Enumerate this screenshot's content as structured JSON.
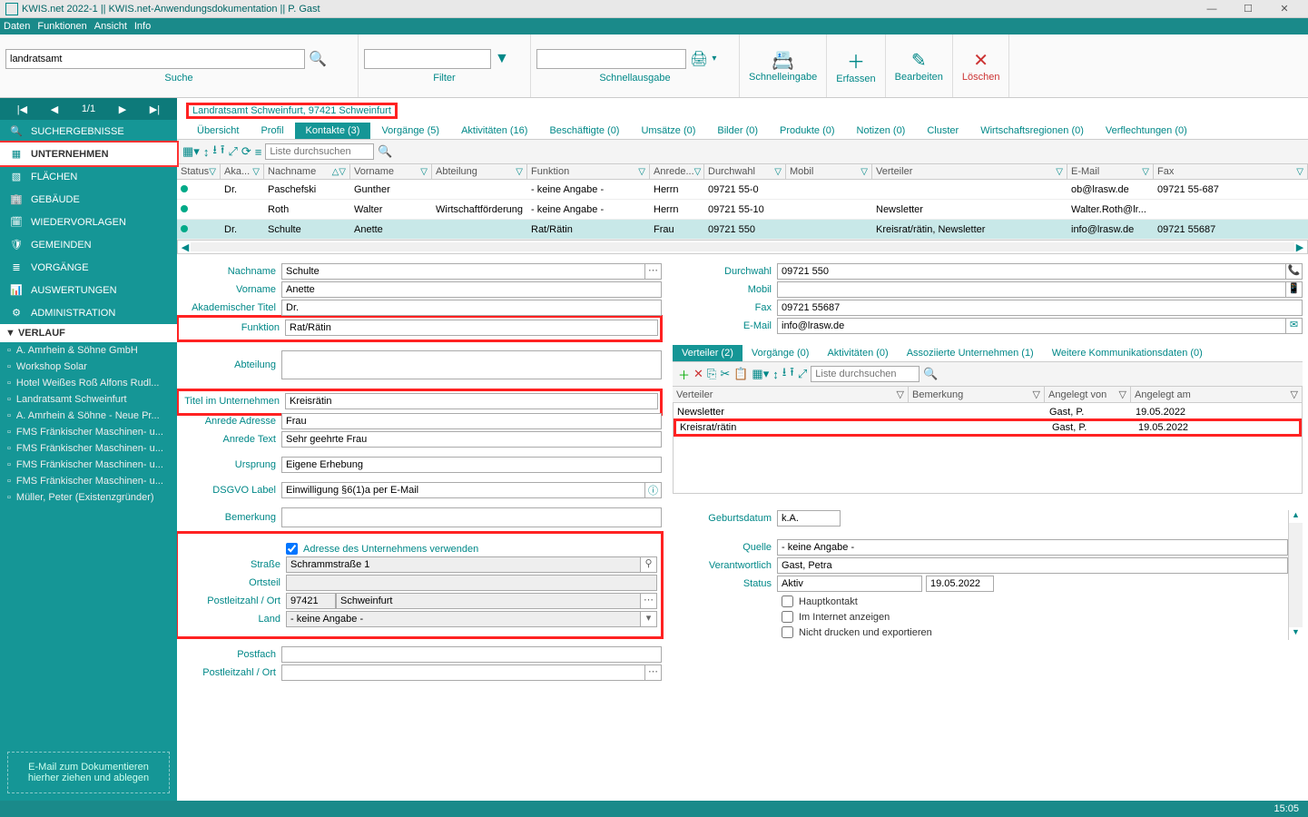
{
  "window": {
    "title": "KWIS.net 2022-1 || KWIS.net-Anwendungsdokumentation || P. Gast",
    "minimize": "—",
    "maximize": "☐",
    "close": "✕"
  },
  "menu": {
    "items": [
      "Daten",
      "Funktionen",
      "Ansicht",
      "Info"
    ]
  },
  "toolbar": {
    "search_value": "landratsamt",
    "search_label": "Suche",
    "filter_label": "Filter",
    "quickout_label": "Schnellausgabe",
    "quickin_label": "Schnelleingabe",
    "erfassen_label": "Erfassen",
    "bearbeiten_label": "Bearbeiten",
    "loeschen_label": "Löschen"
  },
  "paging": {
    "first": "|◀",
    "prev": "◀",
    "pos": "1/1",
    "next": "▶",
    "last": "▶|"
  },
  "sidebar": {
    "suchergebnisse": "SUCHERGEBNISSE",
    "unternehmen": "UNTERNEHMEN",
    "flaechen": "FLÄCHEN",
    "gebaeude": "GEBÄUDE",
    "wiedervorlagen": "WIEDERVORLAGEN",
    "gemeinden": "GEMEINDEN",
    "vorgaenge": "VORGÄNGE",
    "auswertungen": "AUSWERTUNGEN",
    "administration": "ADMINISTRATION",
    "verlauf": "VERLAUF",
    "history": [
      "A. Amrhein & Söhne GmbH",
      "Workshop Solar",
      "Hotel Weißes Roß Alfons Rudl...",
      "Landratsamt Schweinfurt",
      "A. Amrhein & Söhne - Neue Pr...",
      "FMS Fränkischer Maschinen- u...",
      "FMS Fränkischer Maschinen- u...",
      "FMS Fränkischer Maschinen- u...",
      "FMS Fränkischer Maschinen- u...",
      "Müller, Peter (Existenzgründer)"
    ],
    "dropzone": "E-Mail  zum Dokumentieren hierher ziehen und ablegen"
  },
  "entity_title": "Landratsamt Schweinfurt, 97421 Schweinfurt",
  "tabs": [
    {
      "label": "Übersicht"
    },
    {
      "label": "Profil"
    },
    {
      "label": "Kontakte (3)",
      "active": true
    },
    {
      "label": "Vorgänge (5)"
    },
    {
      "label": "Aktivitäten (16)"
    },
    {
      "label": "Beschäftigte (0)"
    },
    {
      "label": "Umsätze (0)"
    },
    {
      "label": "Bilder (0)"
    },
    {
      "label": "Produkte (0)"
    },
    {
      "label": "Notizen (0)"
    },
    {
      "label": "Cluster"
    },
    {
      "label": "Wirtschaftsregionen (0)"
    },
    {
      "label": "Verflechtungen (0)"
    }
  ],
  "grid": {
    "search_placeholder": "Liste durchsuchen",
    "cols": {
      "status": "Status",
      "aka": "Aka...",
      "nachname": "Nachname",
      "vorname": "Vorname",
      "abteilung": "Abteilung",
      "funktion": "Funktion",
      "anrede": "Anrede...",
      "durchwahl": "Durchwahl",
      "mobil": "Mobil",
      "verteiler": "Verteiler",
      "email": "E-Mail",
      "fax": "Fax"
    },
    "rows": [
      {
        "aka": "Dr.",
        "nachname": "Paschefski",
        "vorname": "Gunther",
        "abteilung": "",
        "funktion": "- keine Angabe -",
        "anrede": "Herrn",
        "durchwahl": "09721 55-0",
        "mobil": "",
        "verteiler": "",
        "email": "ob@lrasw.de",
        "fax": "09721 55-687"
      },
      {
        "aka": "",
        "nachname": "Roth",
        "vorname": "Walter",
        "abteilung": "Wirtschaftförderung",
        "funktion": "- keine Angabe -",
        "anrede": "Herrn",
        "durchwahl": "09721 55-10",
        "mobil": "",
        "verteiler": "Newsletter",
        "email": "Walter.Roth@lr...",
        "fax": ""
      },
      {
        "aka": "Dr.",
        "nachname": "Schulte",
        "vorname": "Anette",
        "abteilung": "",
        "funktion": "Rat/Rätin",
        "anrede": "Frau",
        "durchwahl": "09721 550",
        "mobil": "",
        "verteiler": "Kreisrat/rätin, Newsletter",
        "email": "info@lrasw.de",
        "fax": "09721 55687"
      }
    ]
  },
  "detail": {
    "labels": {
      "nachname": "Nachname",
      "vorname": "Vorname",
      "akad": "Akademischer Titel",
      "funktion": "Funktion",
      "abteilung": "Abteilung",
      "titel": "Titel im Unternehmen",
      "anredeAdresse": "Anrede Adresse",
      "anredeText": "Anrede Text",
      "ursprung": "Ursprung",
      "dsgvo": "DSGVO Label",
      "bemerkung": "Bemerkung",
      "durchwahl": "Durchwahl",
      "mobil": "Mobil",
      "fax": "Fax",
      "email": "E-Mail",
      "geburt": "Geburtsdatum",
      "quelle": "Quelle",
      "verantwortlich": "Verantwortlich",
      "status": "Status",
      "adresseChk": "Adresse des Unternehmens verwenden",
      "strasse": "Straße",
      "ortsteil": "Ortsteil",
      "plzort": "Postleitzahl / Ort",
      "land": "Land",
      "postfach": "Postfach",
      "hauptkontakt": "Hauptkontakt",
      "internet": "Im Internet anzeigen",
      "nichtdruck": "Nicht drucken und exportieren"
    },
    "values": {
      "nachname": "Schulte",
      "vorname": "Anette",
      "akad": "Dr.",
      "funktion": "Rat/Rätin",
      "abteilung": "",
      "titel": "Kreisrätin",
      "anredeAdresse": "Frau",
      "anredeText": "Sehr geehrte Frau",
      "ursprung": "Eigene Erhebung",
      "dsgvo": "Einwilligung §6(1)a per E-Mail",
      "bemerkung": "",
      "durchwahl": "09721 550",
      "mobil": "",
      "fax": "09721 55687",
      "email": "info@lrasw.de",
      "geburt": "k.A.",
      "quelle": "- keine Angabe -",
      "verantwortlich": "Gast, Petra",
      "status": "Aktiv",
      "status_date": "19.05.2022",
      "strasse": "Schrammstraße 1",
      "ortsteil": "",
      "plz": "97421",
      "ort": "Schweinfurt",
      "land": "- keine Angabe -"
    }
  },
  "subtabs": [
    {
      "label": "Verteiler (2)",
      "active": true
    },
    {
      "label": "Vorgänge (0)"
    },
    {
      "label": "Aktivitäten (0)"
    },
    {
      "label": "Assoziierte Unternehmen (1)"
    },
    {
      "label": "Weitere Kommunikationsdaten (0)"
    }
  ],
  "subgrid": {
    "search_placeholder": "Liste durchsuchen",
    "cols": {
      "verteiler": "Verteiler",
      "bemerkung": "Bemerkung",
      "angelegtvon": "Angelegt von",
      "angelegtam": "Angelegt am"
    },
    "rows": [
      {
        "verteiler": "Newsletter",
        "bemerkung": "",
        "angelegtvon": "Gast, P.",
        "angelegtam": "19.05.2022",
        "hl": false
      },
      {
        "verteiler": "Kreisrat/rätin",
        "bemerkung": "",
        "angelegtvon": "Gast, P.",
        "angelegtam": "19.05.2022",
        "hl": true
      }
    ]
  },
  "status_time": "15:05"
}
